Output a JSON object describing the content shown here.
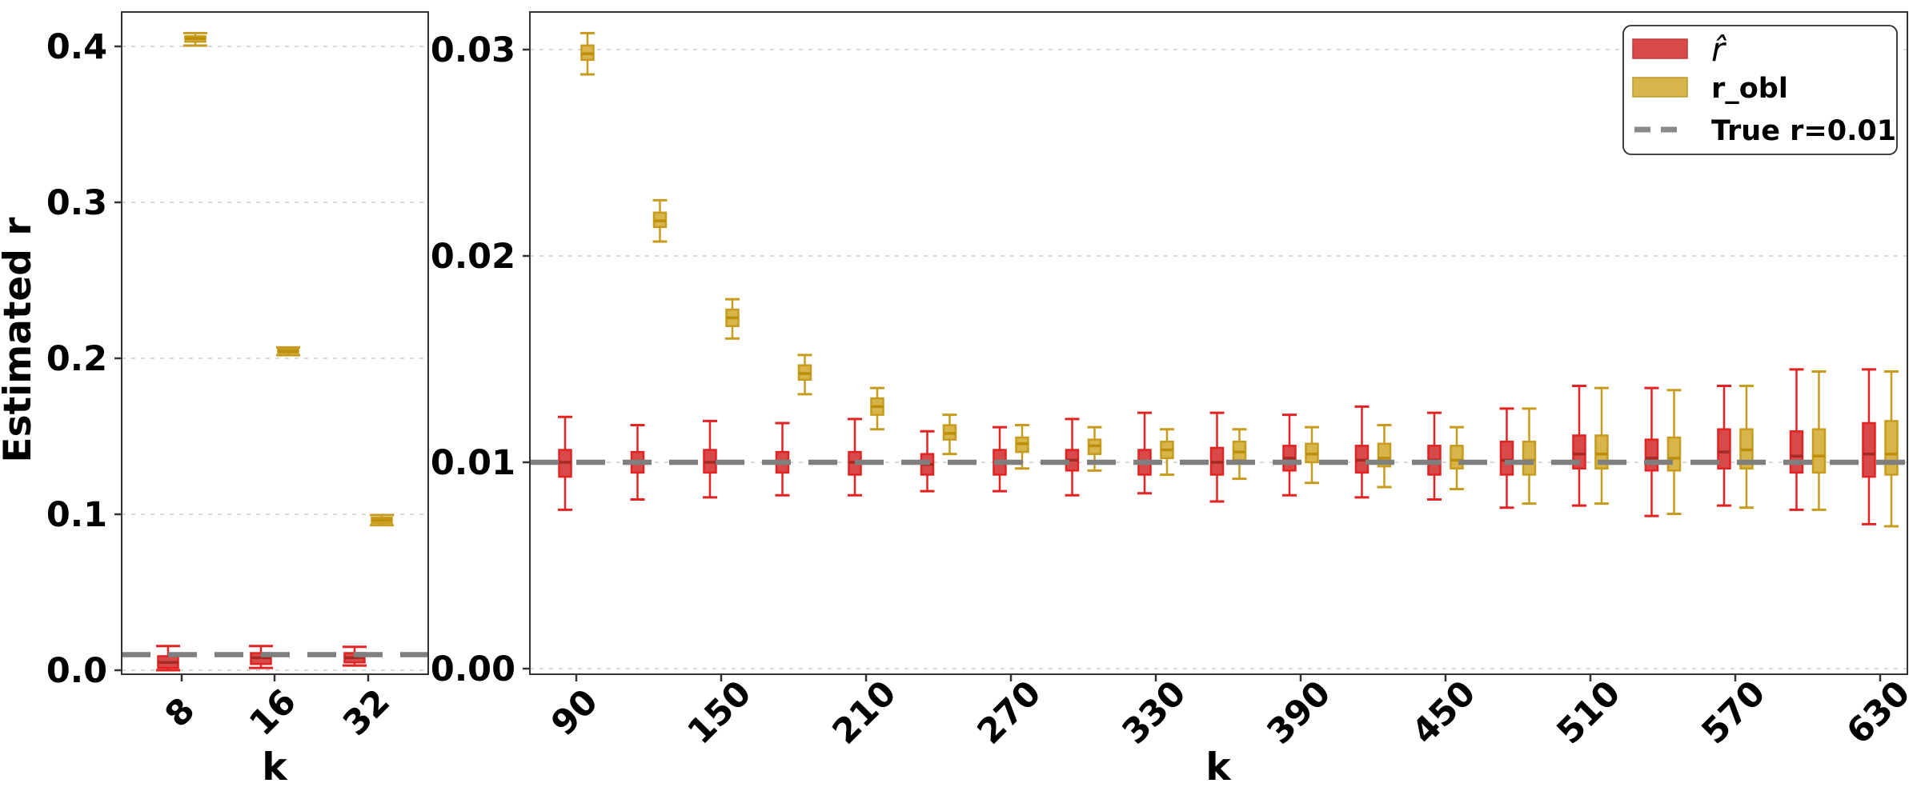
{
  "chart_data": {
    "type": "boxplot",
    "title": "",
    "background": "#ffffff",
    "reference_line": {
      "label": "True r=0.01",
      "value": 0.01
    },
    "colors": {
      "red_fill": "#d8494a",
      "red_edge": "#e32222",
      "red_median": "#a52a22",
      "gold_fill": "#d7b54a",
      "gold_edge": "#c79b1d",
      "gold_median": "#bd8e07",
      "reference_line": "#7f7f7f",
      "legend_dash": "#8a8a8a",
      "gridline": "#cccccc",
      "axis": "#333333",
      "background": "#ffffff"
    },
    "legend": {
      "position": "upper right",
      "items": [
        {
          "label": "r̂",
          "swatch": "patch",
          "series": "red"
        },
        {
          "label": "r_obl",
          "swatch": "patch",
          "series": "gold"
        },
        {
          "label": "True r=0.01",
          "swatch": "dashed-line",
          "series": "reference"
        }
      ]
    },
    "panels": [
      {
        "name": "small-k-panel",
        "xlabel": "k",
        "ylabel": "Estimated r",
        "ylim": [
          0.0,
          0.425
        ],
        "grid": true,
        "y_ticks": [
          {
            "label": "0.0",
            "value": 0.0
          },
          {
            "label": "0.1",
            "value": 0.1
          },
          {
            "label": "0.2",
            "value": 0.2
          },
          {
            "label": "0.3",
            "value": 0.3
          },
          {
            "label": "0.4",
            "value": 0.4
          }
        ],
        "x_ticks": [
          {
            "label": "8"
          },
          {
            "label": "16"
          },
          {
            "label": "32"
          }
        ],
        "categories": [
          8,
          16,
          32
        ],
        "series": [
          {
            "name": "r̂",
            "key": "red",
            "boxes": [
              {
                "k": 8,
                "lo": 0.0,
                "q1": 0.0015,
                "med": 0.005,
                "q3": 0.009,
                "hi": 0.0155
              },
              {
                "k": 16,
                "lo": 0.0015,
                "q1": 0.004,
                "med": 0.008,
                "q3": 0.011,
                "hi": 0.0155
              },
              {
                "k": 32,
                "lo": 0.003,
                "q1": 0.005,
                "med": 0.008,
                "q3": 0.011,
                "hi": 0.015
              }
            ]
          },
          {
            "name": "r_obl",
            "key": "gold",
            "boxes": [
              {
                "k": 8,
                "lo": 0.4005,
                "q1": 0.403,
                "med": 0.405,
                "q3": 0.4065,
                "hi": 0.4085
              },
              {
                "k": 16,
                "lo": 0.202,
                "q1": 0.2035,
                "med": 0.2045,
                "q3": 0.2058,
                "hi": 0.207
              },
              {
                "k": 32,
                "lo": 0.093,
                "q1": 0.0945,
                "med": 0.0962,
                "q3": 0.0978,
                "hi": 0.0995
              }
            ]
          }
        ]
      },
      {
        "name": "large-k-panel",
        "xlabel": "k",
        "ylabel": "",
        "ylim": [
          0.0,
          0.0318
        ],
        "grid": true,
        "y_ticks": [
          {
            "label": "0.00",
            "value": 0.0
          },
          {
            "label": "0.01",
            "value": 0.01
          },
          {
            "label": "0.02",
            "value": 0.02
          },
          {
            "label": "0.03",
            "value": 0.03
          }
        ],
        "x_ticks": [
          {
            "label": "90",
            "k": 90
          },
          {
            "label": "150",
            "k": 150
          },
          {
            "label": "210",
            "k": 210
          },
          {
            "label": "270",
            "k": 270
          },
          {
            "label": "330",
            "k": 330
          },
          {
            "label": "390",
            "k": 390
          },
          {
            "label": "450",
            "k": 450
          },
          {
            "label": "510",
            "k": 510
          },
          {
            "label": "570",
            "k": 570
          },
          {
            "label": "630",
            "k": 630
          }
        ],
        "categories": [
          90,
          120,
          150,
          180,
          210,
          240,
          270,
          300,
          330,
          360,
          390,
          420,
          450,
          480,
          510,
          540,
          570,
          600,
          630
        ],
        "series": [
          {
            "name": "r̂",
            "key": "red",
            "boxes": [
              {
                "k": 90,
                "lo": 0.0077,
                "q1": 0.0093,
                "med": 0.01,
                "q3": 0.0106,
                "hi": 0.0122
              },
              {
                "k": 120,
                "lo": 0.0082,
                "q1": 0.0095,
                "med": 0.01,
                "q3": 0.0105,
                "hi": 0.0118
              },
              {
                "k": 150,
                "lo": 0.0083,
                "q1": 0.0095,
                "med": 0.01,
                "q3": 0.0106,
                "hi": 0.012
              },
              {
                "k": 180,
                "lo": 0.0084,
                "q1": 0.0095,
                "med": 0.01,
                "q3": 0.0105,
                "hi": 0.0119
              },
              {
                "k": 210,
                "lo": 0.0084,
                "q1": 0.0094,
                "med": 0.01,
                "q3": 0.0105,
                "hi": 0.0121
              },
              {
                "k": 240,
                "lo": 0.0086,
                "q1": 0.0094,
                "med": 0.0099,
                "q3": 0.0104,
                "hi": 0.0115
              },
              {
                "k": 270,
                "lo": 0.0086,
                "q1": 0.0094,
                "med": 0.01,
                "q3": 0.0106,
                "hi": 0.0117
              },
              {
                "k": 300,
                "lo": 0.0084,
                "q1": 0.0096,
                "med": 0.0101,
                "q3": 0.0106,
                "hi": 0.0121
              },
              {
                "k": 330,
                "lo": 0.0085,
                "q1": 0.0094,
                "med": 0.01,
                "q3": 0.0106,
                "hi": 0.0124
              },
              {
                "k": 360,
                "lo": 0.0081,
                "q1": 0.0094,
                "med": 0.01,
                "q3": 0.0107,
                "hi": 0.0124
              },
              {
                "k": 390,
                "lo": 0.0084,
                "q1": 0.0096,
                "med": 0.0102,
                "q3": 0.0108,
                "hi": 0.0123
              },
              {
                "k": 420,
                "lo": 0.0083,
                "q1": 0.0095,
                "med": 0.0101,
                "q3": 0.0108,
                "hi": 0.0127
              },
              {
                "k": 450,
                "lo": 0.0082,
                "q1": 0.0094,
                "med": 0.0101,
                "q3": 0.0108,
                "hi": 0.0124
              },
              {
                "k": 480,
                "lo": 0.0078,
                "q1": 0.0094,
                "med": 0.0101,
                "q3": 0.011,
                "hi": 0.0126
              },
              {
                "k": 510,
                "lo": 0.0079,
                "q1": 0.0097,
                "med": 0.0104,
                "q3": 0.0113,
                "hi": 0.0137
              },
              {
                "k": 540,
                "lo": 0.0074,
                "q1": 0.0096,
                "med": 0.0102,
                "q3": 0.0111,
                "hi": 0.0136
              },
              {
                "k": 570,
                "lo": 0.0079,
                "q1": 0.0097,
                "med": 0.0105,
                "q3": 0.0116,
                "hi": 0.0137
              },
              {
                "k": 600,
                "lo": 0.0077,
                "q1": 0.0095,
                "med": 0.0103,
                "q3": 0.0115,
                "hi": 0.0145
              },
              {
                "k": 630,
                "lo": 0.007,
                "q1": 0.0093,
                "med": 0.0104,
                "q3": 0.0119,
                "hi": 0.0145
              }
            ]
          },
          {
            "name": "r_obl",
            "key": "gold",
            "boxes": [
              {
                "k": 90,
                "lo": 0.0288,
                "q1": 0.0295,
                "med": 0.0298,
                "q3": 0.0302,
                "hi": 0.0308
              },
              {
                "k": 120,
                "lo": 0.0207,
                "q1": 0.0214,
                "med": 0.0217,
                "q3": 0.0221,
                "hi": 0.0227
              },
              {
                "k": 150,
                "lo": 0.016,
                "q1": 0.0166,
                "med": 0.017,
                "q3": 0.0174,
                "hi": 0.0179
              },
              {
                "k": 180,
                "lo": 0.0133,
                "q1": 0.014,
                "med": 0.0143,
                "q3": 0.0147,
                "hi": 0.0152
              },
              {
                "k": 210,
                "lo": 0.0116,
                "q1": 0.0123,
                "med": 0.0127,
                "q3": 0.0131,
                "hi": 0.0136
              },
              {
                "k": 240,
                "lo": 0.0104,
                "q1": 0.0111,
                "med": 0.0114,
                "q3": 0.0118,
                "hi": 0.0123
              },
              {
                "k": 270,
                "lo": 0.0097,
                "q1": 0.0105,
                "med": 0.0109,
                "q3": 0.0112,
                "hi": 0.0118
              },
              {
                "k": 300,
                "lo": 0.0096,
                "q1": 0.0104,
                "med": 0.0108,
                "q3": 0.0111,
                "hi": 0.0117
              },
              {
                "k": 330,
                "lo": 0.0094,
                "q1": 0.0102,
                "med": 0.0106,
                "q3": 0.011,
                "hi": 0.0116
              },
              {
                "k": 360,
                "lo": 0.0092,
                "q1": 0.0101,
                "med": 0.0105,
                "q3": 0.011,
                "hi": 0.0116
              },
              {
                "k": 390,
                "lo": 0.009,
                "q1": 0.01,
                "med": 0.0104,
                "q3": 0.0109,
                "hi": 0.0117
              },
              {
                "k": 420,
                "lo": 0.0088,
                "q1": 0.0098,
                "med": 0.0102,
                "q3": 0.0109,
                "hi": 0.0118
              },
              {
                "k": 450,
                "lo": 0.0087,
                "q1": 0.0097,
                "med": 0.0101,
                "q3": 0.0108,
                "hi": 0.0117
              },
              {
                "k": 480,
                "lo": 0.008,
                "q1": 0.0094,
                "med": 0.0101,
                "q3": 0.011,
                "hi": 0.0126
              },
              {
                "k": 510,
                "lo": 0.008,
                "q1": 0.0097,
                "med": 0.0104,
                "q3": 0.0113,
                "hi": 0.0136
              },
              {
                "k": 540,
                "lo": 0.0075,
                "q1": 0.0096,
                "med": 0.0102,
                "q3": 0.0112,
                "hi": 0.0135
              },
              {
                "k": 570,
                "lo": 0.0078,
                "q1": 0.0097,
                "med": 0.0106,
                "q3": 0.0116,
                "hi": 0.0137
              },
              {
                "k": 600,
                "lo": 0.0077,
                "q1": 0.0095,
                "med": 0.0103,
                "q3": 0.0116,
                "hi": 0.0144
              },
              {
                "k": 630,
                "lo": 0.0069,
                "q1": 0.0094,
                "med": 0.0104,
                "q3": 0.012,
                "hi": 0.0144
              }
            ]
          }
        ]
      }
    ]
  }
}
